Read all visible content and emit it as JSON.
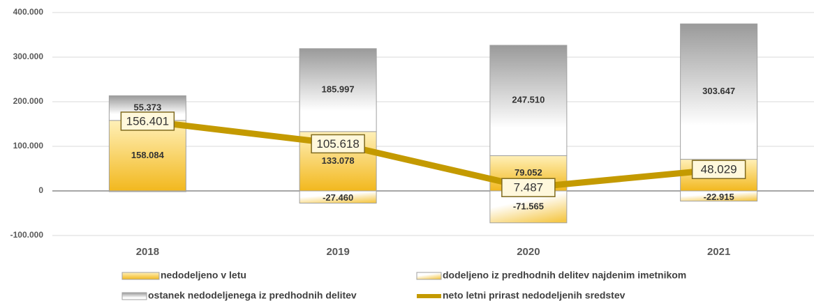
{
  "chart_data": {
    "type": "bar",
    "categories": [
      "2018",
      "2019",
      "2020",
      "2021"
    ],
    "ylim": [
      -100000,
      400000
    ],
    "yticks": [
      {
        "value": -100000,
        "label": "-100.000"
      },
      0,
      {
        "value": 100000,
        "label": "100.000"
      },
      {
        "value": 200000,
        "label": "200.000"
      },
      {
        "value": 300000,
        "label": "300.000"
      },
      {
        "value": 400000,
        "label": "400.000"
      }
    ],
    "grid": true,
    "series": [
      {
        "name": "nedodeljeno v letu",
        "color": "#f2b81e",
        "values": [
          158084,
          133078,
          79052,
          70944
        ],
        "value_labels": [
          "158.084",
          "133.078",
          "79.052",
          null
        ]
      },
      {
        "name": "dodeljeno iz predhodnih delitev najdenim imetnikom",
        "color": "#f5c84a",
        "values": [
          -1683,
          -27460,
          -71565,
          -22915
        ],
        "value_labels": [
          null,
          "-27.460",
          "-71.565",
          "-22.915"
        ]
      },
      {
        "name": "ostanek nedodeljenega iz predhodnih delitev",
        "color": "#9a9a9a",
        "values": [
          55373,
          185997,
          247510,
          303647
        ],
        "value_labels": [
          "55.373",
          "185.997",
          "247.510",
          "303.647"
        ]
      },
      {
        "name": "neto letni prirast nedodeljenih sredstev",
        "type": "line",
        "color": "#c49a00",
        "values": [
          156401,
          105618,
          7487,
          48029
        ],
        "value_labels": [
          "156.401",
          "105.618",
          "7.487",
          "48.029"
        ]
      }
    ],
    "legend": "bottom"
  }
}
